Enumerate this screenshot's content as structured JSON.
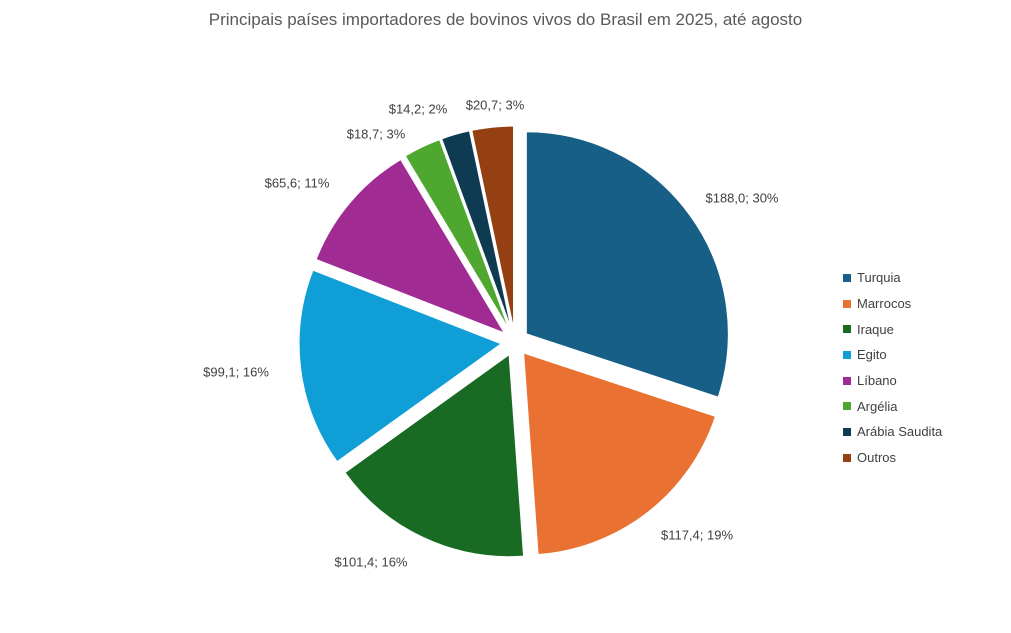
{
  "chart_data": {
    "type": "pie",
    "title": "Principais países importadores de bovinos vivos do Brasil em 2025, até agosto",
    "legend_position": "right",
    "slices": [
      {
        "name": "Turquia",
        "value": 188.0,
        "label": "$188,0; 30%",
        "color": "#175F86"
      },
      {
        "name": "Marrocos",
        "value": 117.4,
        "label": "$117,4; 19%",
        "color": "#E97132"
      },
      {
        "name": "Iraque",
        "value": 101.4,
        "label": "$101,4; 16%",
        "color": "#196B24"
      },
      {
        "name": "Egito",
        "value": 99.1,
        "label": "$99,1; 16%",
        "color": "#0F9ED5"
      },
      {
        "name": "Líbano",
        "value": 65.6,
        "label": "$65,6; 11%",
        "color": "#A02B93"
      },
      {
        "name": "Argélia",
        "value": 18.7,
        "label": "$18,7; 3%",
        "color": "#4EA72E"
      },
      {
        "name": "Arábia Saudita",
        "value": 14.2,
        "label": "$14,2; 2%",
        "color": "#0E3A52"
      },
      {
        "name": "Outros",
        "value": 20.7,
        "label": "$20,7; 3%",
        "color": "#954012"
      }
    ]
  }
}
